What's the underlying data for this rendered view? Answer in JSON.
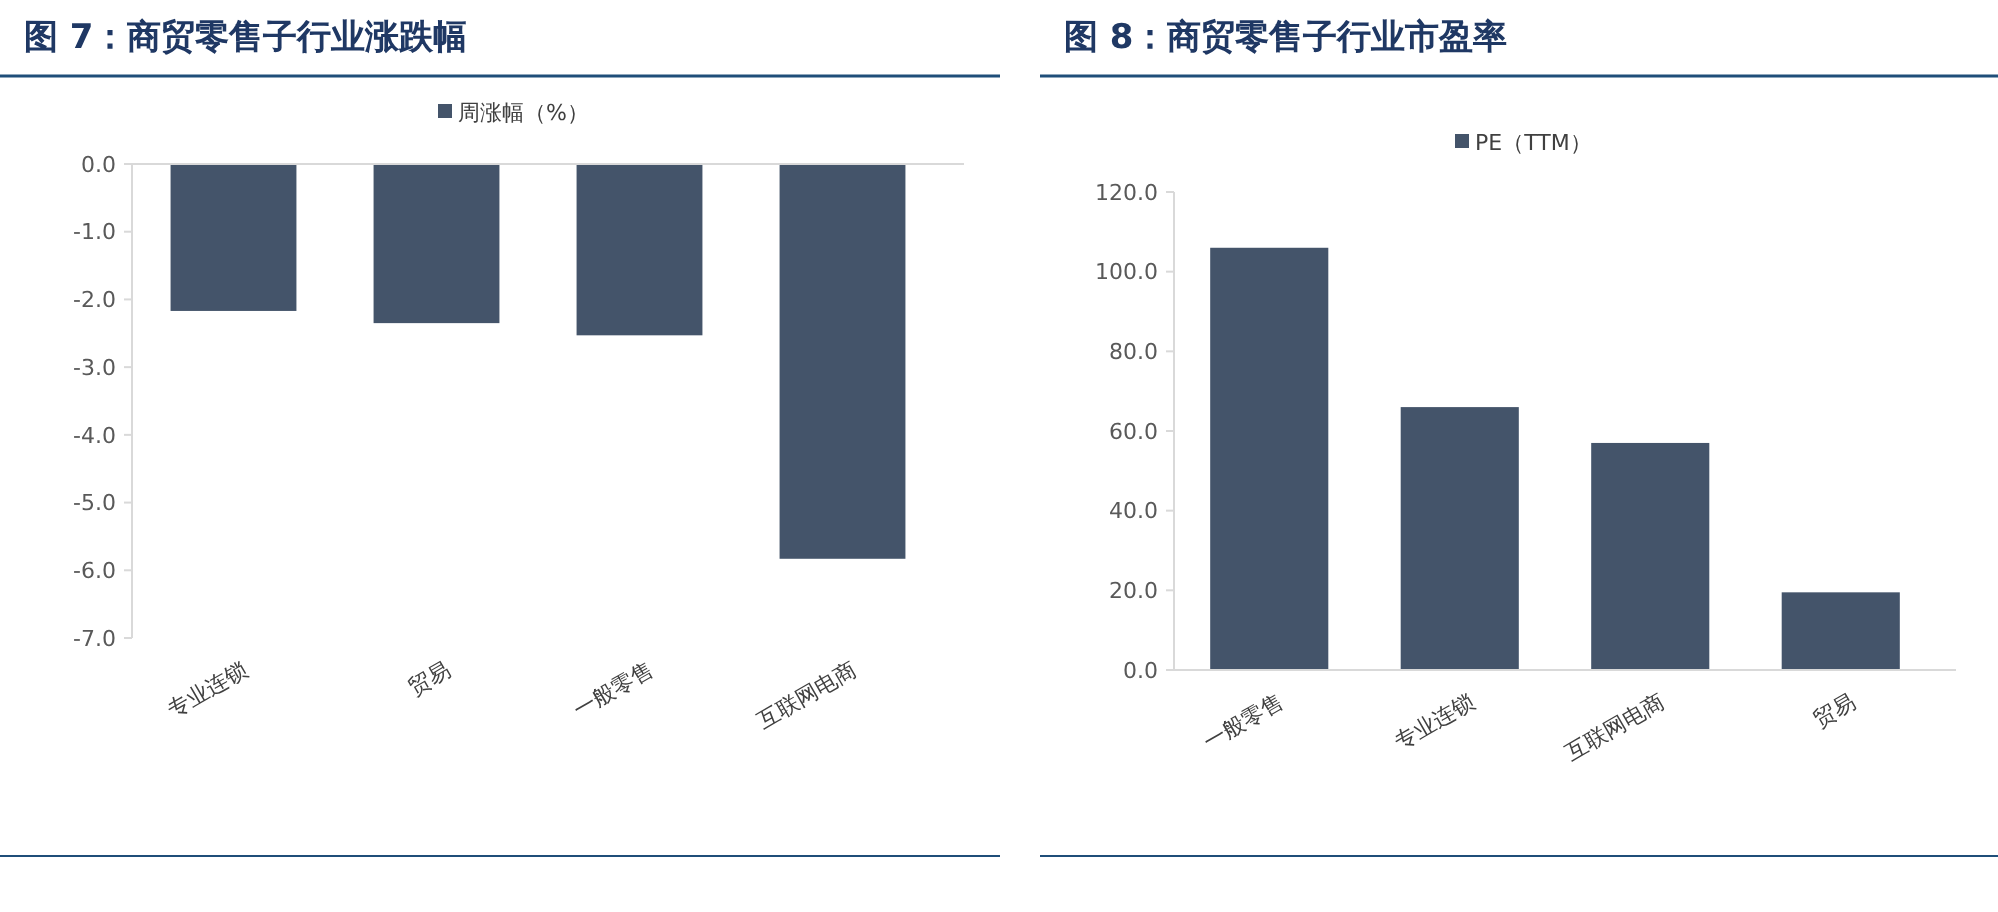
{
  "chart_data": [
    {
      "type": "bar",
      "title": "图 7：商贸零售子行业涨跌幅",
      "categories": [
        "专业连锁",
        "贸易",
        "一般零售",
        "互联网电商"
      ],
      "series": [
        {
          "name": "周涨幅（%）",
          "color": "#44546a",
          "values": [
            -2.17,
            -2.35,
            -2.53,
            -5.83
          ]
        }
      ],
      "ylim": [
        -7,
        0
      ],
      "yticks": [
        {
          "value": 0,
          "label": "0.0"
        },
        {
          "value": -1,
          "label": "-1.0"
        },
        {
          "value": -2,
          "label": "-2.0"
        },
        {
          "value": -3,
          "label": "-3.0"
        },
        {
          "value": -4,
          "label": "-4.0"
        },
        {
          "value": -5,
          "label": "-5.0"
        },
        {
          "value": -6,
          "label": "-6.0"
        },
        {
          "value": -7,
          "label": "-7.0"
        }
      ],
      "legend": "top",
      "grid": false
    },
    {
      "type": "bar",
      "title": "图 8：商贸零售子行业市盈率",
      "categories": [
        "一般零售",
        "专业连锁",
        "互联网电商",
        "贸易"
      ],
      "series": [
        {
          "name": "PE（TTM）",
          "color": "#44546a",
          "values": [
            106,
            66,
            57,
            19.5
          ]
        }
      ],
      "ylim": [
        0,
        120
      ],
      "yticks": [
        {
          "value": 0,
          "label": "0.0"
        },
        {
          "value": 20,
          "label": "20.0"
        },
        {
          "value": 40,
          "label": "40.0"
        },
        {
          "value": 60,
          "label": "60.0"
        },
        {
          "value": 80,
          "label": "80.0"
        },
        {
          "value": 100,
          "label": "100.0"
        },
        {
          "value": 120,
          "label": "120.0"
        }
      ],
      "legend": "top",
      "grid": false
    }
  ]
}
